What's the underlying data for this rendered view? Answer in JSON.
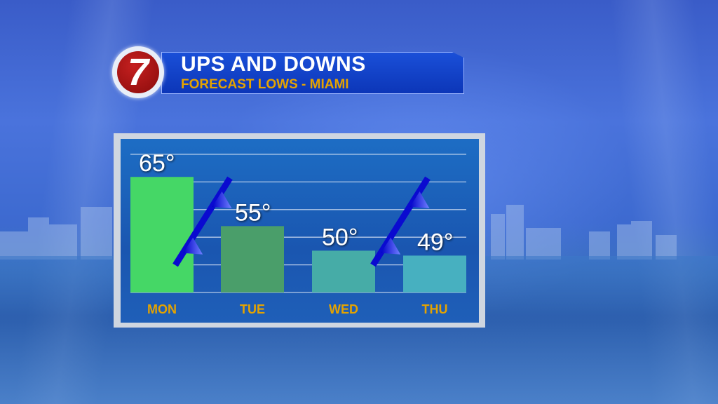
{
  "header": {
    "logo_text": "7",
    "title": "UPS AND DOWNS",
    "subtitle": "FORECAST LOWS - MIAMI"
  },
  "chart_data": {
    "type": "bar",
    "title": "UPS AND DOWNS",
    "subtitle": "FORECAST LOWS - MIAMI",
    "categories": [
      "MON",
      "TUE",
      "WED",
      "THU"
    ],
    "values": [
      65,
      55,
      50,
      49
    ],
    "data_labels": [
      "65°",
      "55°",
      "50°",
      "49°"
    ],
    "bar_colors": [
      "#45d766",
      "#4a9e6a",
      "#46aca7",
      "#47b0c0"
    ],
    "ylim": [
      41.5,
      69.6
    ],
    "grid": true,
    "legend": "none",
    "annotations": [
      {
        "type": "cold-front-symbol",
        "between": [
          "MON",
          "TUE"
        ]
      },
      {
        "type": "cold-front-symbol",
        "between": [
          "WED",
          "THU"
        ]
      }
    ],
    "label_color": "#e5a300"
  }
}
